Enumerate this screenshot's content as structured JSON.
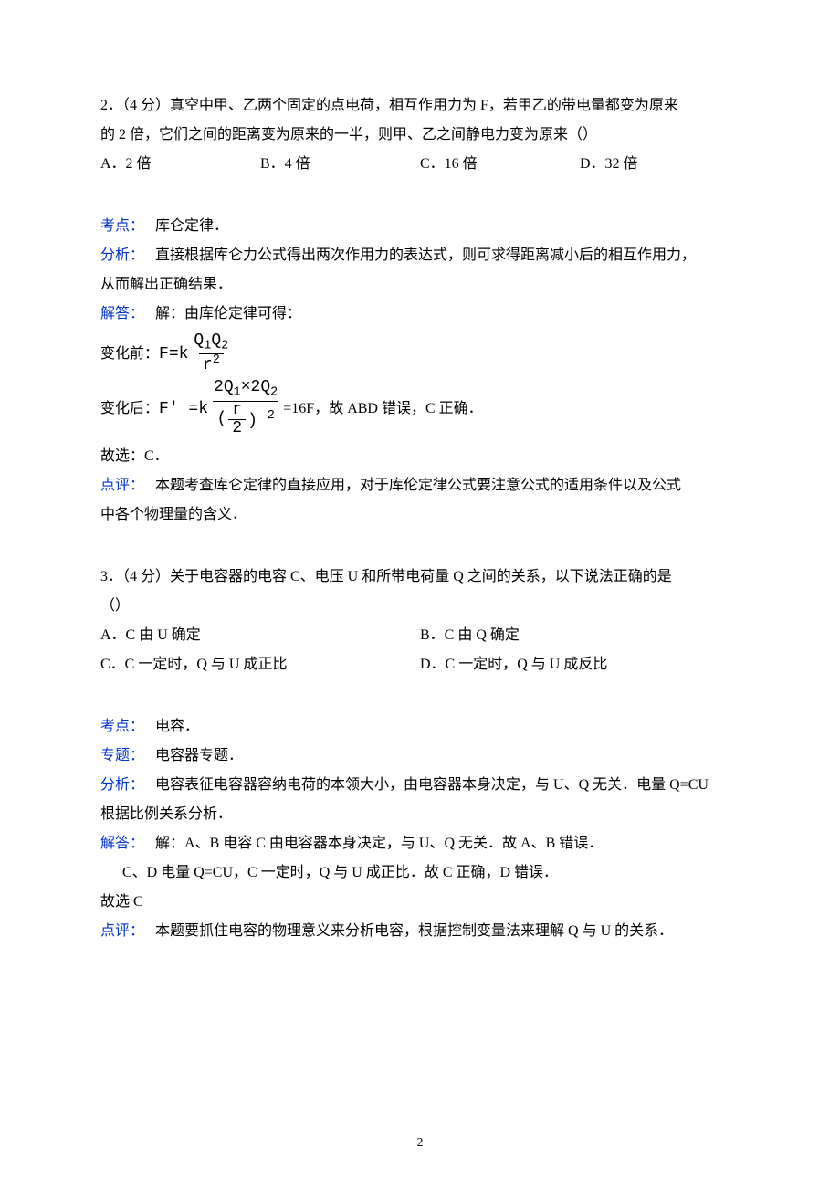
{
  "page_number": "2",
  "colors": {
    "text": "#000000",
    "label": "#0033cc",
    "background": "#ffffff"
  },
  "typography": {
    "body_fontsize_pt": 12,
    "font_family": "SimSun",
    "line_height": 2.0
  },
  "q2": {
    "stem_line1": "2．（4 分）真空中甲、乙两个固定的点电荷，相互作用力为 F，若甲乙的带电量都变为原来",
    "stem_line2": "的 2 倍，它们之间的距离变为原来的一半，则甲、乙之间静电力变为原来（）",
    "options": {
      "A": "A．2 倍",
      "B": "B．4 倍",
      "C": "C．16 倍",
      "D": "D．32 倍"
    },
    "kaodian_label": "考点：",
    "kaodian_text": "库仑定律．",
    "fenxi_label": "分析：",
    "fenxi_line1": "直接根据库仑力公式得出两次作用力的表达式，则可求得距离减小后的相互作用力，",
    "fenxi_line2": "从而解出正确结果．",
    "jieda_label": "解答：",
    "jieda_text": "解：由库伦定律可得：",
    "before_prefix": "变化前：",
    "before_formula": {
      "lhs": "F=k",
      "num": "Q",
      "den_base": "r",
      "den_exp": "2"
    },
    "after_prefix": "变化后：",
    "after_formula": {
      "lhs": "F′ =k",
      "num_pattern": "2Q₁×2Q₂",
      "den_inner_num": "r",
      "den_inner_den": "2",
      "den_outer_exp": "2"
    },
    "after_tail": "=16F，故 ABD 错误，C 正确．",
    "guxuan": "故选：C．",
    "dianping_label": "点评：",
    "dianping_line1": "本题考查库仑定律的直接应用，对于库伦定律公式要注意公式的适用条件以及公式",
    "dianping_line2": "中各个物理量的含义．"
  },
  "q3": {
    "stem_line1": "3．（4 分）关于电容器的电容 C、电压 U 和所带电荷量 Q 之间的关系，以下说法正确的是",
    "stem_line2": "（）",
    "options": {
      "A": "A．C 由 U 确定",
      "B": "B．C 由 Q 确定",
      "C": "C．C 一定时，Q 与 U 成正比",
      "D": "D．C 一定时，Q 与 U 成反比"
    },
    "kaodian_label": "考点：",
    "kaodian_text": "电容．",
    "zhuanti_label": "专题：",
    "zhuanti_text": "电容器专题．",
    "fenxi_label": "分析：",
    "fenxi_line1": "电容表征电容器容纳电荷的本领大小，由电容器本身决定，与 U、Q 无关．电量 Q=CU",
    "fenxi_line2": "根据比例关系分析．",
    "jieda_label": "解答：",
    "jieda_line1": "解：A、B 电容 C 由电容器本身决定，与 U、Q 无关．故 A、B 错误．",
    "jieda_line2": "C、D 电量 Q=CU，C 一定时，Q 与 U 成正比．故 C 正确，D 错误．",
    "guxuan": "故选 C",
    "dianping_label": "点评：",
    "dianping_text": "本题要抓住电容的物理意义来分析电容，根据控制变量法来理解 Q 与 U 的关系．"
  }
}
